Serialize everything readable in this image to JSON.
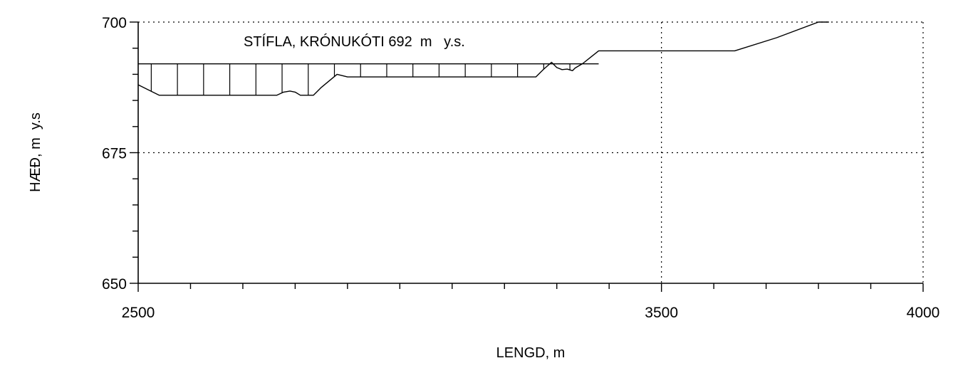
{
  "chart_data": {
    "type": "line",
    "title": "",
    "xlabel": "LENGD, m",
    "ylabel": "HÆÐ, m  y.s",
    "xlim": [
      2500,
      4000
    ],
    "ylim": [
      650,
      700
    ],
    "x_ticks_labeled": [
      "2500",
      "3500",
      "4000"
    ],
    "y_ticks_labeled": [
      "650",
      "675",
      "700"
    ],
    "grid": "dotted",
    "annotation": "STÍFLA, KRÓNUKÓTI 692  m   y.s.",
    "series": [
      {
        "name": "",
        "x": [
          2500,
          2540,
          2655,
          2765,
          2778,
          2790,
          2800,
          2810,
          2825,
          2835,
          2850,
          2880,
          2900,
          2940,
          3060,
          3260,
          3275,
          3290,
          3300,
          3310,
          3320,
          3330,
          3335,
          3350,
          3365,
          3380,
          3400,
          3500,
          3640,
          3720,
          3800,
          3820
        ],
        "y": [
          688,
          686,
          686,
          686,
          686.6,
          686.8,
          686.6,
          686,
          686,
          686,
          687.5,
          690,
          689.5,
          689.5,
          689.5,
          689.5,
          691,
          692.3,
          691.3,
          690.9,
          691,
          690.7,
          691.2,
          692.1,
          693.3,
          694.5,
          694.5,
          694.5,
          694.5,
          697,
          700,
          700
        ]
      },
      {
        "name": "",
        "x": [
          2500,
          3380
        ],
        "y": [
          692,
          692
        ]
      }
    ]
  }
}
